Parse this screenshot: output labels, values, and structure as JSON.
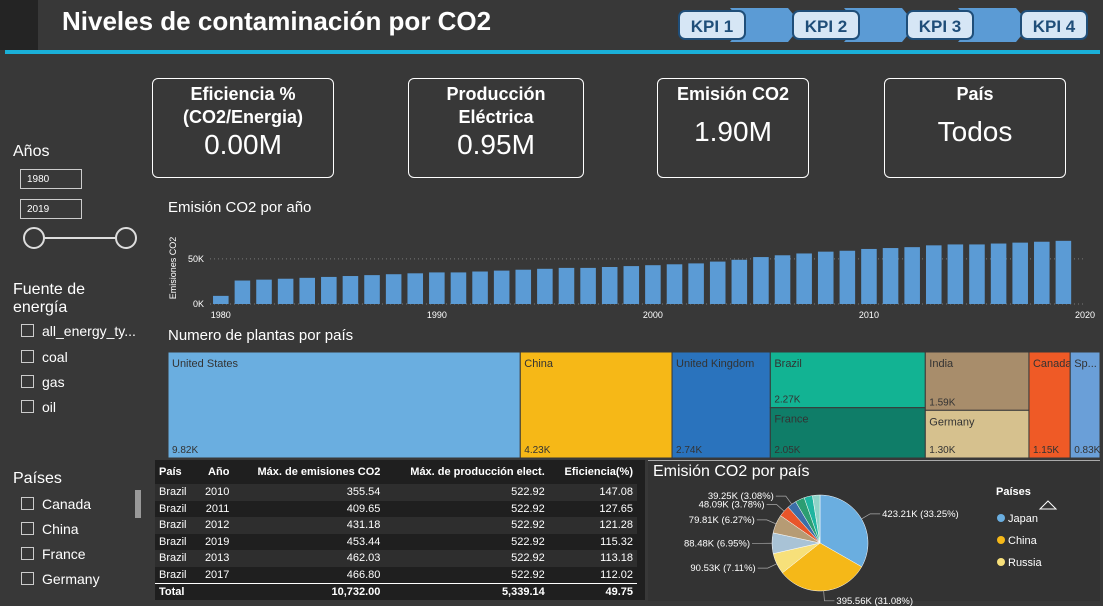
{
  "header": {
    "title": "Niveles de contaminación por CO2",
    "nav": [
      "KPI 1",
      "KPI 2",
      "KPI 3",
      "KPI 4"
    ]
  },
  "cards": [
    {
      "label": "Eficiencia %(CO2/Energia)",
      "value": "0.00M"
    },
    {
      "label": "Producción Eléctrica",
      "value": "0.95M"
    },
    {
      "label": "Emisión CO2",
      "value": "1.90M"
    },
    {
      "label": "País",
      "value": "Todos"
    }
  ],
  "filters": {
    "years": {
      "title": "Años",
      "from": "1980",
      "to": "2019"
    },
    "energy": {
      "title": "Fuente de energía",
      "options": [
        "all_energy_ty...",
        "coal",
        "gas",
        "oil"
      ]
    },
    "countries": {
      "title": "Países",
      "options": [
        "Canada",
        "China",
        "France",
        "Germany"
      ]
    }
  },
  "chart_data": [
    {
      "type": "bar",
      "title": "Emisión CO2 por año",
      "y_label": "Emisiones CO2",
      "color": "#5b9bd5",
      "x": [
        1980,
        1981,
        1982,
        1983,
        1984,
        1985,
        1986,
        1987,
        1988,
        1989,
        1990,
        1991,
        1992,
        1993,
        1994,
        1995,
        1996,
        1997,
        1998,
        1999,
        2000,
        2001,
        2002,
        2003,
        2004,
        2005,
        2006,
        2007,
        2008,
        2009,
        2010,
        2011,
        2012,
        2013,
        2014,
        2015,
        2016,
        2017,
        2018,
        2019
      ],
      "values": [
        9000,
        26000,
        27000,
        28000,
        29000,
        30000,
        31000,
        32000,
        33000,
        34000,
        35000,
        35000,
        36000,
        37000,
        38000,
        39000,
        40000,
        40000,
        41000,
        42000,
        43000,
        44000,
        45000,
        47000,
        49000,
        52000,
        54000,
        56000,
        58000,
        59000,
        61000,
        62000,
        63000,
        65000,
        66000,
        66000,
        67000,
        68000,
        69000,
        70000
      ],
      "xlim": [
        1979.5,
        2020
      ],
      "xticks": [
        1980,
        1990,
        2000,
        2010,
        2020
      ],
      "ylim": [
        0,
        82000
      ],
      "yticks": [
        {
          "value": 0,
          "label": "0K"
        },
        {
          "value": 50000,
          "label": "50K"
        }
      ],
      "grid": true
    },
    {
      "type": "treemap",
      "title": "Numero de plantas por país",
      "categories": [
        "United States",
        "China",
        "United Kingdom",
        "Brazil",
        "France",
        "India",
        "Germany",
        "Canada",
        "Sp..."
      ],
      "values": [
        9820,
        4230,
        2740,
        2270,
        2050,
        1590,
        1300,
        1150,
        830
      ],
      "value_labels": [
        "9.82K",
        "4.23K",
        "2.74K",
        "2.27K",
        "2.05K",
        "1.59K",
        "1.30K",
        "1.15K",
        "0.83K"
      ],
      "colors": [
        "#6aaee0",
        "#f6b817",
        "#2a73bd",
        "#12b393",
        "#0f7d68",
        "#a88d6b",
        "#d6c18e",
        "#ef5a26",
        "#6a9fd8"
      ]
    },
    {
      "type": "pie",
      "title": "Emisión CO2 por país",
      "legend_title": "Países",
      "categories": [
        "Japan",
        "China",
        "Russia",
        null,
        null,
        null,
        null,
        null,
        null,
        null
      ],
      "values": [
        423210,
        395560,
        90530,
        88480,
        79810,
        48090,
        39250,
        40000,
        36000,
        32000
      ],
      "value_labels": [
        "423.21K (33.25%)",
        "395.56K (31.08%)",
        "90.53K (7.11%)",
        "88.48K (6.95%)",
        "79.81K (6.27%)",
        "48.09K (3.78%)",
        "39.25K (3.08%)",
        null,
        null,
        null
      ],
      "colors": [
        "#6aaee0",
        "#f5b818",
        "#f7e07a",
        "#a9c3d6",
        "#b69b74",
        "#e8552a",
        "#3b6ea8",
        "#2c9d72",
        "#1fb5a0",
        "#8fd3c8"
      ]
    }
  ],
  "table": {
    "columns": [
      "País",
      "Año",
      "Máx. de emisiones CO2",
      "Máx. de producción elect.",
      "Eficiencia(%)"
    ],
    "rows": [
      [
        "Brazil",
        "2010",
        "355.54",
        "522.92",
        "147.08"
      ],
      [
        "Brazil",
        "2011",
        "409.65",
        "522.92",
        "127.65"
      ],
      [
        "Brazil",
        "2012",
        "431.18",
        "522.92",
        "121.28"
      ],
      [
        "Brazil",
        "2019",
        "453.44",
        "522.92",
        "115.32"
      ],
      [
        "Brazil",
        "2013",
        "462.03",
        "522.92",
        "113.18"
      ],
      [
        "Brazil",
        "2017",
        "466.80",
        "522.92",
        "112.02"
      ]
    ],
    "total": [
      "Total",
      "",
      "10,732.00",
      "5,339.14",
      "49.75"
    ]
  }
}
